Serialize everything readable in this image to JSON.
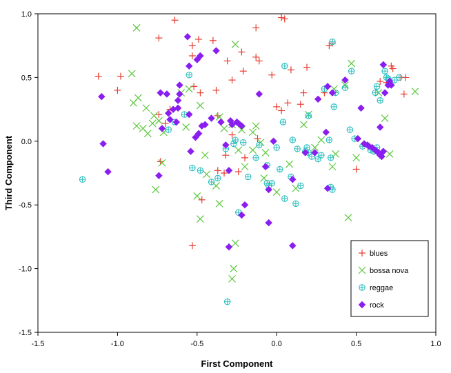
{
  "chart_data": {
    "type": "scatter",
    "xlabel": "First Component",
    "ylabel": "Third Component",
    "xlim": [
      -1.5,
      1.0
    ],
    "ylim": [
      -1.5,
      1.0
    ],
    "xticks": [
      -1.5,
      -1.0,
      -0.5,
      0.0,
      0.5,
      1.0
    ],
    "yticks": [
      -1.5,
      -1.0,
      -0.5,
      0.0,
      0.5,
      1.0
    ],
    "xtick_labels": [
      "-1.5",
      "-1.0",
      "-0.5",
      "0.0",
      "0.5",
      "1.0"
    ],
    "ytick_labels": [
      "-1.5",
      "-1.0",
      "-0.5",
      "0.0",
      "0.5",
      "1.0"
    ],
    "legend_position": "bottom-right",
    "series": [
      {
        "name": "blues",
        "marker": "plus",
        "color": "#e8382b",
        "points": [
          [
            -0.64,
            0.95
          ],
          [
            -0.74,
            0.81
          ],
          [
            -0.53,
            0.75
          ],
          [
            -0.49,
            0.8
          ],
          [
            -0.53,
            0.67
          ],
          [
            -0.4,
            0.79
          ],
          [
            -0.31,
            0.63
          ],
          [
            -0.22,
            0.7
          ],
          [
            -0.13,
            0.89
          ],
          [
            -0.13,
            0.66
          ],
          [
            -0.21,
            0.55
          ],
          [
            -0.28,
            0.48
          ],
          [
            0.03,
            0.97
          ],
          [
            0.05,
            0.96
          ],
          [
            -0.11,
            0.63
          ],
          [
            0.09,
            0.56
          ],
          [
            0.19,
            0.58
          ],
          [
            -0.03,
            0.52
          ],
          [
            0.33,
            0.75
          ],
          [
            0.35,
            0.77
          ],
          [
            -1.12,
            0.51
          ],
          [
            -0.98,
            0.51
          ],
          [
            -1.0,
            0.4
          ],
          [
            -0.52,
            0.43
          ],
          [
            -0.48,
            0.38
          ],
          [
            -0.38,
            0.4
          ],
          [
            0.0,
            0.27
          ],
          [
            0.03,
            0.24
          ],
          [
            0.07,
            0.3
          ],
          [
            0.17,
            0.38
          ],
          [
            0.15,
            0.29
          ],
          [
            0.3,
            0.38
          ],
          [
            -0.74,
            0.21
          ],
          [
            -0.7,
            0.14
          ],
          [
            -0.67,
            0.25
          ],
          [
            -0.73,
            -0.16
          ],
          [
            -0.37,
            0.2
          ],
          [
            -0.28,
            0.05
          ],
          [
            -0.12,
            0.02
          ],
          [
            -0.32,
            -0.11
          ],
          [
            -0.37,
            -0.23
          ],
          [
            -0.33,
            -0.25
          ],
          [
            -0.2,
            -0.13
          ],
          [
            -0.24,
            -0.24
          ],
          [
            -0.47,
            -0.46
          ],
          [
            -0.53,
            -0.82
          ],
          [
            0.5,
            -0.22
          ],
          [
            0.65,
            0.47
          ],
          [
            0.72,
            0.59
          ],
          [
            0.73,
            0.57
          ],
          [
            0.78,
            0.5
          ],
          [
            0.81,
            0.5
          ],
          [
            0.8,
            0.37
          ],
          [
            0.69,
            0.46
          ]
        ]
      },
      {
        "name": "bossa nova",
        "marker": "x",
        "color": "#5ac83a",
        "points": [
          [
            -0.88,
            0.89
          ],
          [
            -0.91,
            0.53
          ],
          [
            -0.9,
            0.3
          ],
          [
            -0.87,
            0.34
          ],
          [
            -0.82,
            0.26
          ],
          [
            -0.77,
            0.2
          ],
          [
            -0.74,
            0.16
          ],
          [
            -0.78,
            0.14
          ],
          [
            -0.84,
            0.1
          ],
          [
            -0.81,
            0.06
          ],
          [
            -0.88,
            0.12
          ],
          [
            -0.71,
            0.07
          ],
          [
            -0.72,
            -0.17
          ],
          [
            -0.76,
            -0.38
          ],
          [
            -0.6,
            0.38
          ],
          [
            -0.48,
            0.28
          ],
          [
            -0.55,
            0.41
          ],
          [
            -0.57,
            0.11
          ],
          [
            -0.5,
            -0.43
          ],
          [
            -0.48,
            -0.61
          ],
          [
            -0.44,
            -0.26
          ],
          [
            -0.45,
            -0.11
          ],
          [
            -0.38,
            -0.35
          ],
          [
            -0.36,
            -0.49
          ],
          [
            -0.26,
            0.76
          ],
          [
            -0.36,
            0.19
          ],
          [
            -0.33,
            0.1
          ],
          [
            -0.28,
            0.13
          ],
          [
            -0.22,
            0.09
          ],
          [
            -0.15,
            0.07
          ],
          [
            -0.13,
            0.12
          ],
          [
            -0.1,
            -0.01
          ],
          [
            -0.07,
            -0.09
          ],
          [
            -0.15,
            -0.07
          ],
          [
            -0.2,
            -0.2
          ],
          [
            -0.08,
            -0.29
          ],
          [
            -0.24,
            -0.07
          ],
          [
            -0.26,
            -0.8
          ],
          [
            -0.27,
            -1.0
          ],
          [
            -0.28,
            -1.08
          ],
          [
            0.0,
            -0.4
          ],
          [
            0.12,
            -0.37
          ],
          [
            0.08,
            -0.18
          ],
          [
            0.24,
            -0.05
          ],
          [
            0.28,
            0.01
          ],
          [
            0.37,
            -0.1
          ],
          [
            0.35,
            -0.2
          ],
          [
            0.17,
            0.13
          ],
          [
            0.2,
            0.21
          ],
          [
            0.36,
            0.41
          ],
          [
            0.47,
            0.61
          ],
          [
            0.43,
            0.44
          ],
          [
            0.5,
            -0.13
          ],
          [
            0.45,
            -0.6
          ],
          [
            0.68,
            0.18
          ],
          [
            0.64,
            0.38
          ],
          [
            0.87,
            0.39
          ],
          [
            0.71,
            -0.1
          ]
        ]
      },
      {
        "name": "reggae",
        "marker": "circle-plus",
        "color": "#2ebfbf",
        "points": [
          [
            -1.22,
            -0.3
          ],
          [
            -0.68,
            0.09
          ],
          [
            -0.64,
            0.15
          ],
          [
            -0.58,
            0.21
          ],
          [
            -0.55,
            0.52
          ],
          [
            -0.48,
            -0.23
          ],
          [
            -0.53,
            -0.21
          ],
          [
            -0.37,
            -0.29
          ],
          [
            -0.41,
            -0.32
          ],
          [
            -0.32,
            -0.06
          ],
          [
            -0.27,
            -0.02
          ],
          [
            -0.26,
            0.01
          ],
          [
            -0.21,
            -0.01
          ],
          [
            -0.18,
            -0.28
          ],
          [
            -0.24,
            -0.56
          ],
          [
            -0.31,
            -1.26
          ],
          [
            -0.13,
            -0.13
          ],
          [
            -0.11,
            -0.03
          ],
          [
            -0.06,
            -0.19
          ],
          [
            -0.06,
            -0.33
          ],
          [
            -0.05,
            -0.35
          ],
          [
            -0.03,
            -0.33
          ],
          [
            0.0,
            -0.05
          ],
          [
            0.02,
            -0.22
          ],
          [
            0.04,
            0.15
          ],
          [
            0.05,
            0.59
          ],
          [
            0.05,
            -0.45
          ],
          [
            0.09,
            -0.28
          ],
          [
            0.1,
            0.01
          ],
          [
            0.12,
            -0.49
          ],
          [
            0.13,
            -0.06
          ],
          [
            0.15,
            -0.35
          ],
          [
            0.18,
            -0.08
          ],
          [
            0.19,
            -0.05
          ],
          [
            0.2,
            -0.09
          ],
          [
            0.22,
            -0.12
          ],
          [
            0.26,
            -0.14
          ],
          [
            0.28,
            -0.11
          ],
          [
            0.3,
            0.41
          ],
          [
            0.33,
            0.01
          ],
          [
            0.34,
            -0.13
          ],
          [
            0.34,
            -0.36
          ],
          [
            0.35,
            -0.38
          ],
          [
            0.36,
            0.27
          ],
          [
            0.35,
            0.78
          ],
          [
            0.37,
            0.38
          ],
          [
            0.43,
            0.42
          ],
          [
            0.47,
            0.55
          ],
          [
            0.46,
            0.09
          ],
          [
            0.49,
            0.02
          ],
          [
            0.54,
            -0.04
          ],
          [
            0.59,
            -0.07
          ],
          [
            0.61,
            -0.08
          ],
          [
            0.63,
            -0.05
          ],
          [
            0.62,
            0.38
          ],
          [
            0.63,
            0.43
          ],
          [
            0.65,
            0.32
          ],
          [
            0.68,
            0.55
          ],
          [
            0.69,
            0.5
          ],
          [
            0.7,
            0.49
          ],
          [
            0.74,
            0.48
          ],
          [
            0.77,
            0.5
          ],
          [
            0.2,
            0.2
          ]
        ]
      },
      {
        "name": "rock",
        "marker": "diamond",
        "color": "#8a1ef0",
        "points": [
          [
            -1.1,
            0.35
          ],
          [
            -1.09,
            -0.02
          ],
          [
            -1.06,
            -0.24
          ],
          [
            -0.74,
            -0.27
          ],
          [
            -0.73,
            0.38
          ],
          [
            -0.69,
            0.37
          ],
          [
            -0.72,
            0.1
          ],
          [
            -0.68,
            0.22
          ],
          [
            -0.67,
            0.17
          ],
          [
            -0.65,
            0.25
          ],
          [
            -0.63,
            0.15
          ],
          [
            -0.62,
            0.26
          ],
          [
            -0.62,
            0.32
          ],
          [
            -0.61,
            0.37
          ],
          [
            -0.61,
            0.44
          ],
          [
            -0.56,
            0.82
          ],
          [
            -0.55,
            0.59
          ],
          [
            -0.55,
            0.21
          ],
          [
            -0.54,
            -0.08
          ],
          [
            -0.51,
            0.03
          ],
          [
            -0.5,
            0.64
          ],
          [
            -0.48,
            0.67
          ],
          [
            -0.49,
            0.06
          ],
          [
            -0.47,
            0.12
          ],
          [
            -0.45,
            0.13
          ],
          [
            -0.41,
            0.18
          ],
          [
            -0.38,
            0.71
          ],
          [
            -0.35,
            0.15
          ],
          [
            -0.32,
            -0.03
          ],
          [
            -0.29,
            0.16
          ],
          [
            -0.28,
            0.13
          ],
          [
            -0.25,
            0.15
          ],
          [
            -0.24,
            0.14
          ],
          [
            -0.22,
            0.12
          ],
          [
            -0.3,
            -0.23
          ],
          [
            -0.22,
            -0.58
          ],
          [
            -0.2,
            -0.5
          ],
          [
            -0.3,
            -0.83
          ],
          [
            -0.11,
            0.37
          ],
          [
            -0.07,
            -0.2
          ],
          [
            -0.05,
            -0.38
          ],
          [
            -0.05,
            -0.64
          ],
          [
            -0.02,
            0.0
          ],
          [
            0.1,
            -0.3
          ],
          [
            0.1,
            -0.82
          ],
          [
            0.18,
            -0.09
          ],
          [
            0.24,
            -0.09
          ],
          [
            0.26,
            0.33
          ],
          [
            0.31,
            0.07
          ],
          [
            0.32,
            -0.37
          ],
          [
            0.32,
            0.43
          ],
          [
            0.35,
            0.38
          ],
          [
            0.43,
            0.48
          ],
          [
            0.53,
            0.26
          ],
          [
            0.51,
            0.02
          ],
          [
            0.55,
            -0.02
          ],
          [
            0.57,
            -0.03
          ],
          [
            0.58,
            -0.04
          ],
          [
            0.6,
            -0.05
          ],
          [
            0.62,
            -0.07
          ],
          [
            0.63,
            -0.08
          ],
          [
            0.64,
            -0.09
          ],
          [
            0.65,
            -0.11
          ],
          [
            0.66,
            -0.12
          ],
          [
            0.67,
            -0.08
          ],
          [
            0.67,
            0.6
          ],
          [
            0.68,
            0.38
          ],
          [
            0.7,
            0.44
          ],
          [
            0.71,
            0.47
          ],
          [
            0.65,
            0.11
          ],
          [
            0.72,
            0.44
          ]
        ]
      }
    ]
  }
}
